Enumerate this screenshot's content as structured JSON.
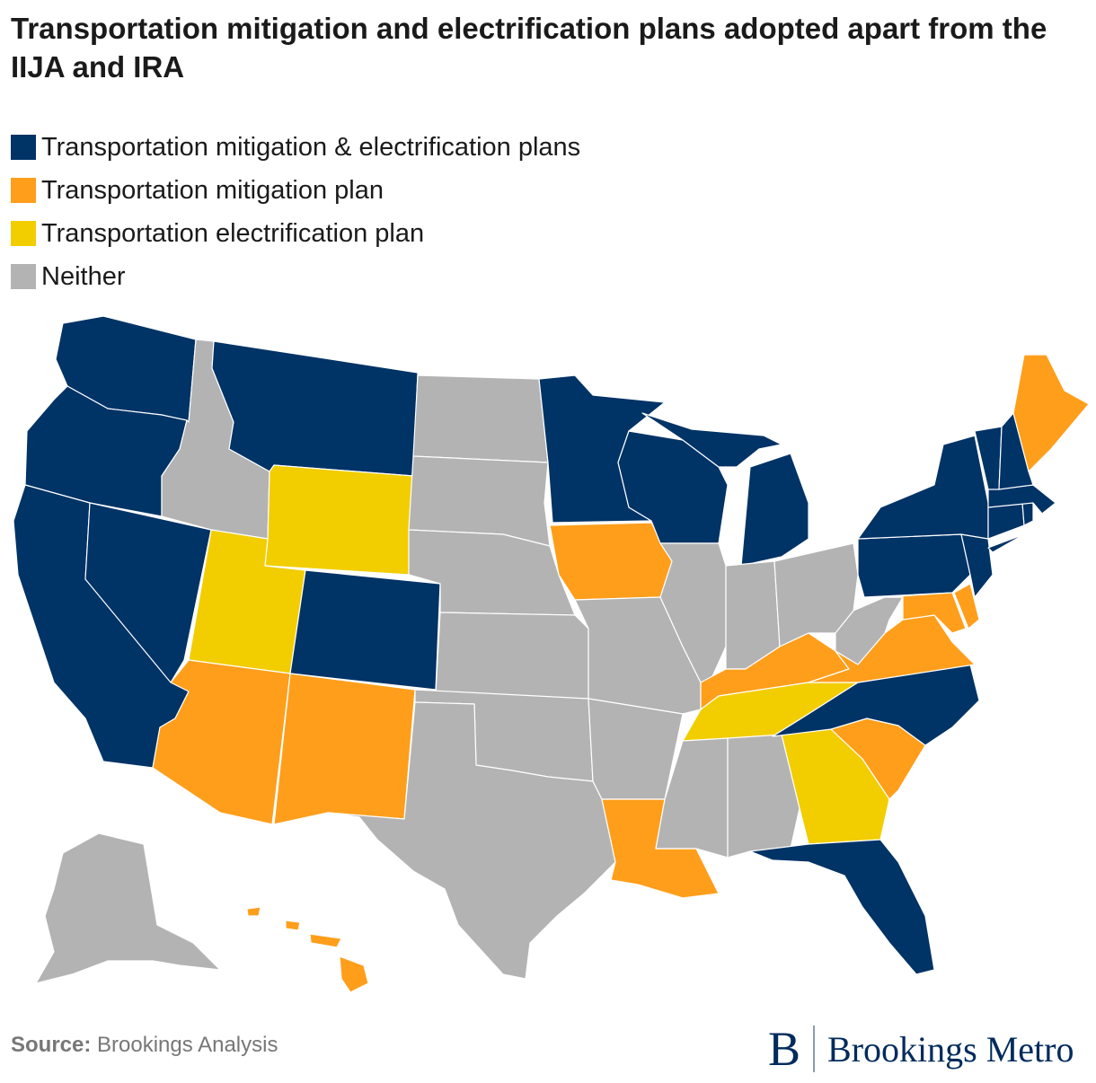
{
  "title": "Transportation mitigation and electrification plans adopted apart from the IIJA and IRA",
  "legend": [
    {
      "label": "Transportation mitigation & electrification plans",
      "color": "#003366"
    },
    {
      "label": "Transportation mitigation plan",
      "color": "#FF9E1B"
    },
    {
      "label": "Transportation electrification plan",
      "color": "#F2CD00"
    },
    {
      "label": "Neither",
      "color": "#B3B3B3"
    }
  ],
  "map": {
    "categories": {
      "both": "#003366",
      "mitigation": "#FF9E1B",
      "electrification": "#F2CD00",
      "neither": "#B3B3B3"
    },
    "states": {
      "WA": "both",
      "OR": "both",
      "CA": "both",
      "NV": "both",
      "ID": "neither",
      "MT": "both",
      "WY": "electrification",
      "UT": "electrification",
      "CO": "both",
      "AZ": "mitigation",
      "NM": "mitigation",
      "ND": "neither",
      "SD": "neither",
      "NE": "neither",
      "KS": "neither",
      "OK": "neither",
      "TX": "neither",
      "MN": "both",
      "IA": "mitigation",
      "MO": "neither",
      "AR": "neither",
      "LA": "mitigation",
      "WI": "both",
      "IL": "neither",
      "MI": "both",
      "IN": "neither",
      "OH": "neither",
      "KY": "mitigation",
      "TN": "electrification",
      "MS": "neither",
      "AL": "neither",
      "GA": "electrification",
      "FL": "both",
      "SC": "mitigation",
      "NC": "both",
      "VA": "mitigation",
      "WV": "neither",
      "PA": "both",
      "NY": "both",
      "VT": "both",
      "NH": "both",
      "ME": "mitigation",
      "MA": "both",
      "RI": "both",
      "CT": "both",
      "NJ": "both",
      "DE": "mitigation",
      "MD": "mitigation",
      "AK": "neither",
      "HI": "mitigation"
    }
  },
  "source": {
    "label": "Source:",
    "text": "Brookings Analysis"
  },
  "logo": {
    "mark": "B",
    "text": "Brookings Metro"
  }
}
